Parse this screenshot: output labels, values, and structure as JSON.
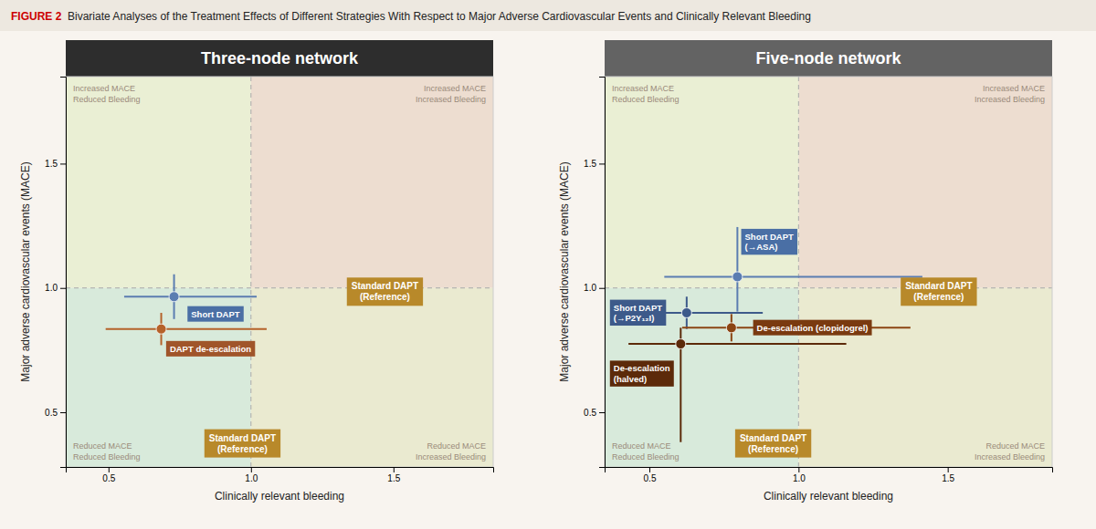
{
  "background": "#f8f4ef",
  "title_background": "#ede8e0",
  "title_parts": [
    {
      "text": "FIGURE 2",
      "color": "#cc0000"
    },
    {
      "text": "  Bivariate Analyses of the Treatment Effects of Different Strategies With Respect to Major Adverse Cardiovascular Events and Clinically Relevant Bleeding",
      "color": "#222222"
    }
  ],
  "chart_data": [
    {
      "type": "scatter",
      "title": "Three-node network",
      "header_color": "#2d2d2d",
      "xlabel": "Clinically relevant bleeding",
      "ylabel": "Major adverse cardiovascular events (MACE)",
      "xlim": [
        0.35,
        1.85
      ],
      "ylim": [
        0.28,
        1.85
      ],
      "xticks": [
        0.5,
        {
          "value": 1.0,
          "label": "1.0"
        },
        1.5
      ],
      "yticks": [
        0.5,
        {
          "value": 1.0,
          "label": "1.0"
        },
        1.5
      ],
      "grid": false,
      "dividers": {
        "x": 1.0,
        "y": 1.0
      },
      "quadrant_labels": [
        "Increased MACE\nReduced Bleeding",
        "Increased MACE\nIncreased Bleeding",
        "Reduced MACE\nReduced Bleeding",
        "Reduced MACE\nIncreased Bleeding"
      ],
      "quadrant_colors": [
        "#eaefd4",
        "#edddd0",
        "#d8eadb",
        "#eaead0"
      ],
      "quadrant_label_color": "#9a8a7a",
      "series": [
        {
          "name": "Short DAPT",
          "color": "#5b7db1",
          "label_color": "#4a6fa5",
          "x": [
            0.73
          ],
          "values": [
            0.965
          ],
          "xerr_lo": [
            0.175
          ],
          "xerr_hi": [
            0.29
          ],
          "yerr_lo": [
            0.09
          ],
          "yerr_hi": [
            0.09
          ],
          "label_x": 0.79,
          "label_y": 0.895
        },
        {
          "name": "DAPT de-escalation",
          "color": "#b5622a",
          "label_color": "#a0552a",
          "x": [
            0.685
          ],
          "values": [
            0.835
          ],
          "xerr_lo": [
            0.195
          ],
          "xerr_hi": [
            0.37
          ],
          "yerr_lo": [
            0.065
          ],
          "yerr_hi": [
            0.065
          ],
          "label_x": 0.715,
          "label_y": 0.755
        }
      ],
      "annotations": [
        {
          "text": "Standard DAPT\n(Reference)",
          "x": 1.47,
          "y": 0.985,
          "color": "#b8892a"
        },
        {
          "text": "Standard DAPT\n(Reference)",
          "x": 0.97,
          "y": 0.375,
          "color": "#b8892a"
        }
      ]
    },
    {
      "type": "scatter",
      "title": "Five-node network",
      "header_color": "#636363",
      "xlabel": "Clinically relevant bleeding",
      "ylabel": "Major adverse cardiovascular events (MACE)",
      "xlim": [
        0.35,
        1.85
      ],
      "ylim": [
        0.28,
        1.85
      ],
      "xticks": [
        0.5,
        {
          "value": 1.0,
          "label": "1.0"
        },
        1.5
      ],
      "yticks": [
        0.5,
        {
          "value": 1.0,
          "label": "1.0"
        },
        1.5
      ],
      "grid": false,
      "dividers": {
        "x": 1.0,
        "y": 1.0
      },
      "quadrant_labels": [
        "Increased MACE\nReduced Bleeding",
        "Increased MACE\nIncreased Bleeding",
        "Reduced MACE\nReduced Bleeding",
        "Reduced MACE\nIncreased Bleeding"
      ],
      "quadrant_colors": [
        "#eaefd4",
        "#edddd0",
        "#d8eadb",
        "#eaead0"
      ],
      "quadrant_label_color": "#9a8a7a",
      "series": [
        {
          "name": "Short DAPT\n(→ASA)",
          "color": "#5b7db1",
          "label_color": "#4a6fa5",
          "x": [
            0.795
          ],
          "values": [
            1.045
          ],
          "xerr_lo": [
            0.245
          ],
          "xerr_hi": [
            0.62
          ],
          "yerr_lo": [
            0.14
          ],
          "yerr_hi": [
            0.2
          ],
          "label_x": 0.82,
          "label_y": 1.185
        },
        {
          "name": "Short DAPT\n(→P2Y₁₂I)",
          "color": "#3d5a8a",
          "label_color": "#3d5a8a",
          "x": [
            0.625
          ],
          "values": [
            0.9
          ],
          "xerr_lo": [
            0.095
          ],
          "xerr_hi": [
            0.255
          ],
          "yerr_lo": [
            0.065
          ],
          "yerr_hi": [
            0.065
          ],
          "label_x": 0.38,
          "label_y": 0.9
        },
        {
          "name": "De-escalation (clopidogrel)",
          "color": "#8b4513",
          "label_color": "#7a3a10",
          "x": [
            0.775
          ],
          "values": [
            0.84
          ],
          "xerr_lo": [
            0.165
          ],
          "xerr_hi": [
            0.6
          ],
          "yerr_lo": [
            0.055
          ],
          "yerr_hi": [
            0.055
          ],
          "label_x": 0.86,
          "label_y": 0.84
        },
        {
          "name": "De-escalation\n(halved)",
          "color": "#5c2a0a",
          "label_color": "#5c2a0a",
          "x": [
            0.605
          ],
          "values": [
            0.775
          ],
          "xerr_lo": [
            0.175
          ],
          "xerr_hi": [
            0.555
          ],
          "yerr_lo": [
            0.395
          ],
          "yerr_hi": [
            0.065
          ],
          "label_x": 0.38,
          "label_y": 0.655
        }
      ],
      "annotations": [
        {
          "text": "Standard DAPT\n(Reference)",
          "x": 1.47,
          "y": 0.985,
          "color": "#b8892a"
        },
        {
          "text": "Standard DAPT\n(Reference)",
          "x": 0.915,
          "y": 0.375,
          "color": "#b8892a"
        }
      ]
    }
  ]
}
